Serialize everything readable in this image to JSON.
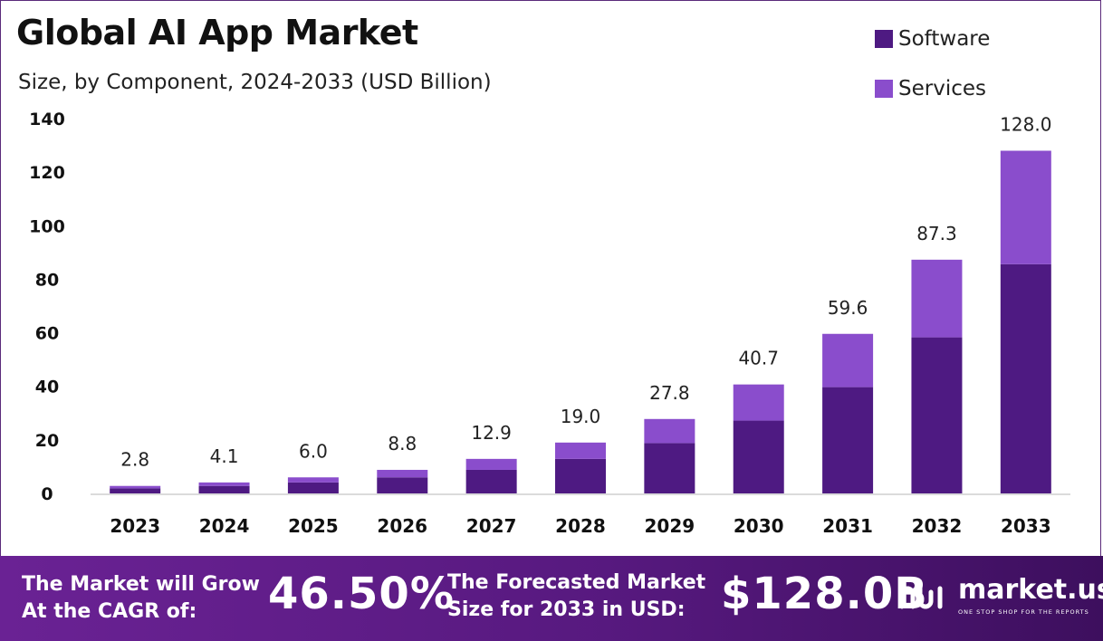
{
  "title": "Global AI App Market",
  "subtitle": "Size, by Component, 2024-2033 (USD Billion)",
  "legend": [
    {
      "label": "Software",
      "color": "#4e1a82"
    },
    {
      "label": "Services",
      "color": "#8a4dcc"
    }
  ],
  "chart_data": {
    "type": "bar",
    "stacked": true,
    "title": "Global AI App Market",
    "subtitle": "Size, by Component, 2024-2033 (USD Billion)",
    "xlabel": "",
    "ylabel": "",
    "ylim": [
      0,
      140
    ],
    "yticks": [
      0,
      20,
      40,
      60,
      80,
      100,
      120,
      140
    ],
    "grid": false,
    "legend_position": "top-right",
    "categories": [
      "2023",
      "2024",
      "2025",
      "2026",
      "2027",
      "2028",
      "2029",
      "2030",
      "2031",
      "2032",
      "2033"
    ],
    "series": [
      {
        "name": "Software",
        "color": "#4e1a82",
        "values": [
          1.9,
          2.8,
          4.1,
          6.0,
          8.8,
          12.9,
          18.8,
          27.2,
          39.7,
          58.3,
          85.6
        ]
      },
      {
        "name": "Services",
        "color": "#8a4dcc",
        "values": [
          0.9,
          1.3,
          1.9,
          2.8,
          4.1,
          6.1,
          9.0,
          13.5,
          19.9,
          29.0,
          42.4
        ]
      }
    ],
    "totals": [
      "2.8",
      "4.1",
      "6.0",
      "8.8",
      "12.9",
      "19.0",
      "27.8",
      "40.7",
      "59.6",
      "87.3",
      "128.0"
    ]
  },
  "footer": {
    "cagr_text_line1": "The Market will Grow",
    "cagr_text_line2": "At the CAGR of:",
    "cagr_value": "46.50%",
    "forecast_text_line1": "The Forecasted Market",
    "forecast_text_line2": "Size for 2033 in USD:",
    "forecast_value": "$128.0B",
    "brand_name": "market.us",
    "brand_tagline": "ONE STOP SHOP FOR THE REPORTS"
  }
}
